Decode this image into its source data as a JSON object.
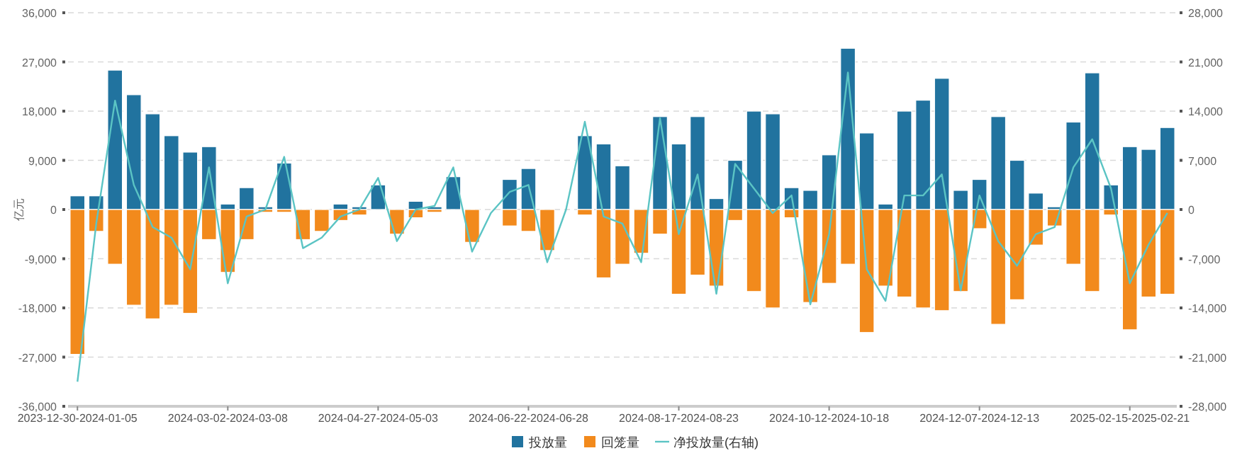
{
  "chart_data": {
    "type": "bar",
    "stacked": true,
    "ylabel": "亿元",
    "grid": "y",
    "legend": "bottom",
    "marker": "none",
    "line_style": "solid",
    "categories": [
      "2023-12-30-2024-01-05",
      null,
      null,
      null,
      null,
      null,
      null,
      null,
      "2024-03-02-2024-03-08",
      null,
      null,
      null,
      null,
      null,
      null,
      null,
      "2024-04-27-2024-05-03",
      null,
      null,
      null,
      null,
      null,
      null,
      null,
      "2024-06-22-2024-06-28",
      null,
      null,
      null,
      null,
      null,
      null,
      null,
      "2024-08-17-2024-08-23",
      null,
      null,
      null,
      null,
      null,
      null,
      null,
      "2024-10-12-2024-10-18",
      null,
      null,
      null,
      null,
      null,
      null,
      null,
      "2024-12-07-2024-12-13",
      null,
      null,
      null,
      null,
      null,
      null,
      null,
      "2025-02-15-2025-02-21",
      null,
      null
    ],
    "ylim": [
      -36000,
      36000
    ],
    "yticks": [
      {
        "value": -36000,
        "label": "-36,000"
      },
      {
        "value": -27000,
        "label": "-27,000"
      },
      {
        "value": -18000,
        "label": "-18,000"
      },
      {
        "value": -9000,
        "label": "-9,000"
      },
      0,
      {
        "value": 9000,
        "label": "9,000"
      },
      {
        "value": 18000,
        "label": "18,000"
      },
      {
        "value": 27000,
        "label": "27,000"
      },
      {
        "value": 36000,
        "label": "36,000"
      }
    ],
    "y2lim": [
      -28000,
      28000
    ],
    "y2ticks": [
      {
        "value": -28000,
        "label": "-28,000"
      },
      {
        "value": -21000,
        "label": "-21,000"
      },
      {
        "value": -14000,
        "label": "-14,000"
      },
      {
        "value": -7000,
        "label": "-7,000"
      },
      0,
      {
        "value": 7000,
        "label": "7,000"
      },
      {
        "value": 14000,
        "label": "14,000"
      },
      {
        "value": 21000,
        "label": "21,000"
      },
      {
        "value": 28000,
        "label": "28,000"
      }
    ],
    "series": [
      {
        "name": "投放量",
        "color": "#21739f",
        "values": [
          2500,
          2500,
          25500,
          21000,
          17500,
          13500,
          10500,
          11500,
          1000,
          4000,
          500,
          8500,
          null,
          null,
          1000,
          500,
          4500,
          null,
          1500,
          500,
          6000,
          null,
          null,
          5500,
          7500,
          null,
          null,
          13500,
          12000,
          8000,
          null,
          17000,
          12000,
          17000,
          2000,
          9000,
          18000,
          17500,
          4000,
          3500,
          10000,
          29500,
          14000,
          1000,
          18000,
          20000,
          24000,
          3500,
          5500,
          17000,
          9000,
          3000,
          500,
          16000,
          25000,
          4500,
          11500,
          11000,
          15000
        ]
      },
      {
        "name": "回笼量",
        "color": "#f28a1c",
        "values": [
          -26500,
          -4000,
          -10000,
          -17500,
          -20000,
          -17500,
          -19000,
          -5500,
          -11500,
          -5500,
          -500,
          -500,
          -5500,
          -4000,
          -2000,
          -1000,
          null,
          -4500,
          -1500,
          -500,
          null,
          -6000,
          null,
          -3000,
          -4000,
          -7500,
          null,
          -1000,
          -12500,
          -10000,
          -8000,
          -4500,
          -15500,
          -12000,
          -14000,
          -2000,
          -15000,
          -18000,
          -1500,
          -17000,
          -13500,
          -10000,
          -22500,
          -14000,
          -16000,
          -18000,
          -18500,
          -15000,
          -3500,
          -21000,
          -16500,
          -6500,
          -3000,
          -10000,
          -15000,
          -1000,
          -22000,
          -16000,
          -15500
        ]
      },
      {
        "name": "净投放量(右轴)",
        "type": "line",
        "axis": "y2",
        "color": "#5bc4c4",
        "values": [
          -24500,
          -2000,
          15500,
          3500,
          -2500,
          -4000,
          -8500,
          6000,
          -10500,
          -1000,
          0,
          7500,
          -5500,
          -4000,
          -1000,
          0,
          4500,
          -4500,
          0,
          500,
          6000,
          -6000,
          -500,
          2500,
          3500,
          -7500,
          0,
          12500,
          -1000,
          -2000,
          -7500,
          13000,
          -3500,
          5000,
          -12000,
          6500,
          3000,
          -500,
          2000,
          -13500,
          -3500,
          19500,
          -8500,
          -13000,
          2000,
          2000,
          5000,
          -11500,
          2000,
          -4500,
          -8000,
          -3500,
          -2500,
          6000,
          10000,
          3000,
          -10500,
          -5000,
          -500
        ]
      }
    ]
  }
}
